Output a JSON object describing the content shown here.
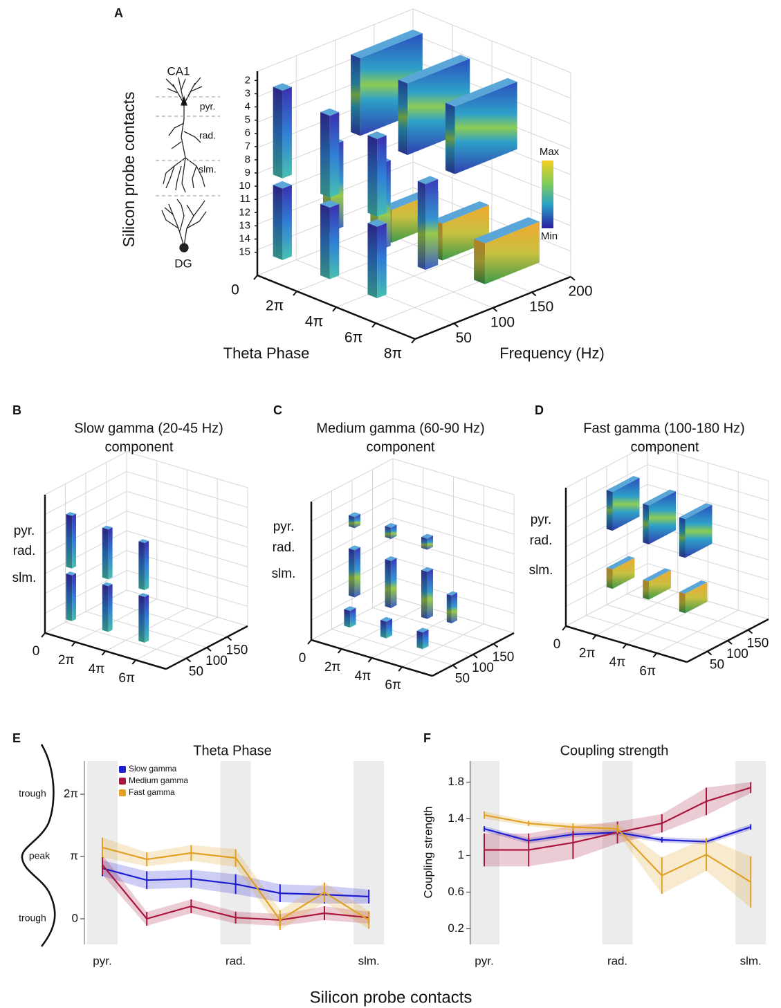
{
  "panel_a": {
    "panel": "A",
    "ylabel": "Silicon probe contacts",
    "contacts": [
      2,
      3,
      4,
      5,
      6,
      7,
      8,
      9,
      10,
      11,
      12,
      13,
      14,
      15
    ],
    "contacts_lim": [
      16.75,
      1.3
    ],
    "cell_top": "CA1",
    "layers": [
      "pyr.",
      "rad.",
      "slm."
    ],
    "cell_bottom": "DG",
    "theta_ticks": [
      {
        "value": 0,
        "label": "0"
      },
      {
        "value": 6.2832,
        "label": "2π"
      },
      {
        "value": 12.5664,
        "label": "4π"
      },
      {
        "value": 18.8496,
        "label": "6π"
      },
      {
        "value": 25.1327,
        "label": "8π"
      }
    ],
    "theta_lim": [
      0,
      25.1327
    ],
    "theta_label": "Theta Phase",
    "freq_ticks": [
      50,
      100,
      150,
      200
    ],
    "freq_lim": [
      0,
      200
    ],
    "freq_label": "Frequency (Hz)",
    "colorbar": [
      "Max",
      "Min"
    ]
  },
  "panels_bcd": [
    {
      "panel": "B",
      "title": "Slow gamma (20-45 Hz)",
      "color": "#2727d9",
      "subtitle": "component",
      "layers": [
        "pyr.",
        "rad.",
        "slm."
      ],
      "theta_ticks": [
        {
          "value": 0,
          "label": "0"
        },
        {
          "value": 6.2832,
          "label": "2π"
        },
        {
          "value": 12.5664,
          "label": "4π"
        },
        {
          "value": 18.8496,
          "label": "6π"
        }
      ],
      "theta_lim": [
        0,
        25.1327
      ],
      "freq_ticks": [
        50,
        100,
        150
      ],
      "freq_lim": [
        0,
        200
      ]
    },
    {
      "panel": "C",
      "title": "Medium gamma (60-90 Hz)",
      "color": "#b3123f",
      "subtitle": "component",
      "layers": [
        "pyr.",
        "rad.",
        "slm."
      ],
      "theta_ticks": [
        {
          "value": 0,
          "label": "0"
        },
        {
          "value": 6.2832,
          "label": "2π"
        },
        {
          "value": 12.5664,
          "label": "4π"
        },
        {
          "value": 18.8496,
          "label": "6π"
        }
      ],
      "theta_lim": [
        0,
        25.1327
      ],
      "freq_ticks": [
        50,
        100,
        150
      ],
      "freq_lim": [
        0,
        200
      ]
    },
    {
      "panel": "D",
      "title": "Fast gamma (100-180 Hz)",
      "color": "#e0a03a",
      "subtitle": "component",
      "layers": [
        "pyr.",
        "rad.",
        "slm."
      ],
      "theta_ticks": [
        {
          "value": 0,
          "label": "0"
        },
        {
          "value": 6.2832,
          "label": "2π"
        },
        {
          "value": 12.5664,
          "label": "4π"
        },
        {
          "value": 18.8496,
          "label": "6π"
        }
      ],
      "theta_lim": [
        0,
        25.1327
      ],
      "freq_ticks": [
        50,
        100,
        150
      ],
      "freq_lim": [
        0,
        200
      ]
    }
  ],
  "chart_data": [
    {
      "type": "line",
      "panel": "E",
      "title": "Theta Phase",
      "categories": [
        "pyr.",
        null,
        null,
        "rad.",
        null,
        null,
        "slm."
      ],
      "ylim": [
        -1.29,
        7.96
      ],
      "yticks": [
        {
          "value": 0,
          "label": "0"
        },
        {
          "value": 3.1416,
          "label": "π"
        },
        {
          "value": 6.2832,
          "label": "2π"
        }
      ],
      "phase_labels": [
        "trough",
        "peak",
        "trough"
      ],
      "shaded": [
        0,
        3,
        6
      ],
      "legend": "upper left",
      "series": [
        {
          "name": "Slow gamma",
          "color": "#1c1cd0",
          "values": [
            2.55,
            1.95,
            2.02,
            1.75,
            1.29,
            1.22,
            1.12
          ],
          "errors": [
            0.4,
            0.45,
            0.45,
            0.5,
            0.45,
            0.45,
            0.35
          ]
        },
        {
          "name": "Medium gamma",
          "color": "#a8163c",
          "values": [
            2.72,
            0,
            0.63,
            0.06,
            -0.06,
            0.28,
            0.06
          ],
          "errors": [
            0.5,
            0.35,
            0.35,
            0.3,
            0.3,
            0.35,
            0.3
          ]
        },
        {
          "name": "Fast gamma",
          "color": "#e0a125",
          "values": [
            3.6,
            3.0,
            3.32,
            3.07,
            -0.06,
            1.33,
            -0.06
          ],
          "errors": [
            0.5,
            0.35,
            0.4,
            0.45,
            0.5,
            0.5,
            0.45
          ]
        }
      ]
    },
    {
      "type": "line",
      "panel": "F",
      "title": "Coupling strength",
      "ylabel": "Coupling strength",
      "categories": [
        "pyr.",
        null,
        null,
        "rad.",
        null,
        null,
        "slm."
      ],
      "ylim": [
        0.03,
        2.03
      ],
      "yticks": [
        0.2,
        0.6,
        1,
        1.4,
        1.8
      ],
      "shaded": [
        0,
        3,
        6
      ],
      "series": [
        {
          "name": "Slow gamma",
          "color": "#1c1cd0",
          "values": [
            1.29,
            1.16,
            1.23,
            1.25,
            1.17,
            1.15,
            1.31
          ],
          "errors": [
            0.03,
            0.03,
            0.03,
            0.03,
            0.03,
            0.03,
            0.03
          ]
        },
        {
          "name": "Medium gamma",
          "color": "#a8163c",
          "values": [
            1.06,
            1.06,
            1.14,
            1.25,
            1.35,
            1.59,
            1.74
          ],
          "errors": [
            0.18,
            0.18,
            0.18,
            0.12,
            0.1,
            0.15,
            0.06
          ]
        },
        {
          "name": "Fast gamma",
          "color": "#e0a125",
          "values": [
            1.44,
            1.35,
            1.31,
            1.29,
            0.78,
            1.01,
            0.71
          ],
          "errors": [
            0.04,
            0.03,
            0.04,
            0.05,
            0.2,
            0.18,
            0.28
          ]
        }
      ]
    }
  ],
  "xlabel": "Silicon probe contacts"
}
